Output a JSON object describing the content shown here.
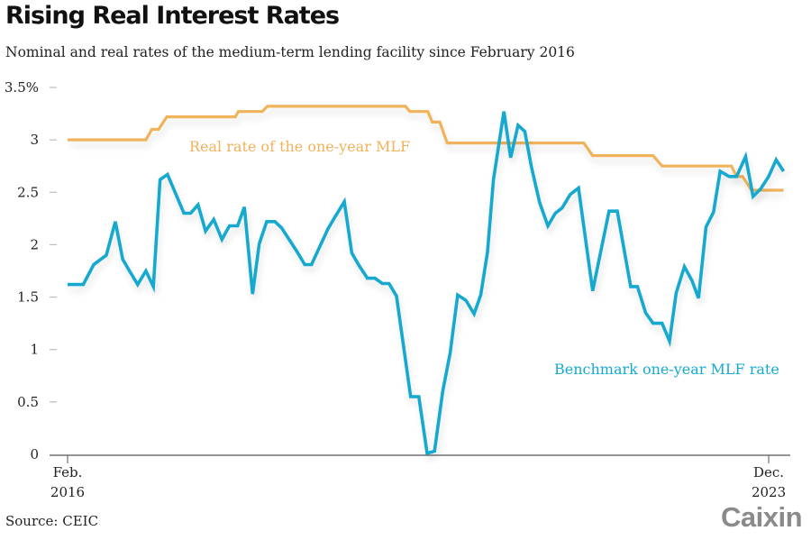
{
  "header": {
    "title": "Rising Real Interest Rates",
    "subtitle": "Nominal and real rates of the medium-term lending facility since February 2016"
  },
  "footer": {
    "source": "Source: CEIC",
    "logo": "Caixin"
  },
  "colors": {
    "real_rate": "#F0B25A",
    "benchmark": "#17A9CF",
    "axis": "#555555",
    "tick": "#bbbbbb"
  },
  "chart_data": {
    "type": "line",
    "title": "Rising Real Interest Rates",
    "subtitle": "Nominal and real rates of the medium-term lending facility since February 2016",
    "xlabel": "",
    "ylabel": "%",
    "x_range": [
      "Feb. 2016",
      "Dec. 2023"
    ],
    "x_ticks": [
      {
        "month_index": 0,
        "line1": "Feb.",
        "line2": "2016"
      },
      {
        "month_index": 94,
        "line1": "Dec.",
        "line2": "2023"
      }
    ],
    "ylim": [
      0,
      3.5
    ],
    "y_ticks": [
      {
        "value": 0,
        "label": "0"
      },
      {
        "value": 0.5,
        "label": "0.5"
      },
      {
        "value": 1,
        "label": "1"
      },
      {
        "value": 1.5,
        "label": "1.5"
      },
      {
        "value": 2,
        "label": "2"
      },
      {
        "value": 2.5,
        "label": "2.5"
      },
      {
        "value": 3,
        "label": "3"
      },
      {
        "value": 3.5,
        "label": "3.5%"
      }
    ],
    "grid": false,
    "legend": "inline labels",
    "series": [
      {
        "name": "Real rate of the one-year MLF",
        "color": "#F0B25A",
        "label_position": "upper-left, below line",
        "points": [
          [
            0,
            3.0
          ],
          [
            10.5,
            3.0
          ],
          [
            11.3,
            3.1
          ],
          [
            12.2,
            3.1
          ],
          [
            13.3,
            3.22
          ],
          [
            22.5,
            3.22
          ],
          [
            22.9,
            3.27
          ],
          [
            26.1,
            3.27
          ],
          [
            26.8,
            3.32
          ],
          [
            45.3,
            3.32
          ],
          [
            45.9,
            3.27
          ],
          [
            48.3,
            3.27
          ],
          [
            48.9,
            3.17
          ],
          [
            49.9,
            3.17
          ],
          [
            50.9,
            2.97
          ],
          [
            69.2,
            2.97
          ],
          [
            70.4,
            2.85
          ],
          [
            78.5,
            2.85
          ],
          [
            79.7,
            2.75
          ],
          [
            89.0,
            2.75
          ],
          [
            89.7,
            2.65
          ],
          [
            90.5,
            2.65
          ],
          [
            91.7,
            2.52
          ],
          [
            96.0,
            2.52
          ]
        ]
      },
      {
        "name": "Benchmark one-year MLF rate",
        "color": "#17A9CF",
        "label_position": "lower-right",
        "points": [
          [
            0,
            1.62
          ],
          [
            2.1,
            1.62
          ],
          [
            3.5,
            1.81
          ],
          [
            5.2,
            1.9
          ],
          [
            6.4,
            2.22
          ],
          [
            7.4,
            1.86
          ],
          [
            8.3,
            1.75
          ],
          [
            9.4,
            1.62
          ],
          [
            10.5,
            1.75
          ],
          [
            11.5,
            1.6
          ],
          [
            12.4,
            2.62
          ],
          [
            13.4,
            2.67
          ],
          [
            15.6,
            2.3
          ],
          [
            16.5,
            2.3
          ],
          [
            17.5,
            2.38
          ],
          [
            18.5,
            2.13
          ],
          [
            19.6,
            2.24
          ],
          [
            20.7,
            2.05
          ],
          [
            21.7,
            2.18
          ],
          [
            22.8,
            2.18
          ],
          [
            23.7,
            2.36
          ],
          [
            24.8,
            1.53
          ],
          [
            25.7,
            2.01
          ],
          [
            26.7,
            2.22
          ],
          [
            27.8,
            2.22
          ],
          [
            28.7,
            2.16
          ],
          [
            30.8,
            1.93
          ],
          [
            31.8,
            1.81
          ],
          [
            32.7,
            1.81
          ],
          [
            34.9,
            2.15
          ],
          [
            35.9,
            2.27
          ],
          [
            37.1,
            2.41
          ],
          [
            38.1,
            1.92
          ],
          [
            39.0,
            1.81
          ],
          [
            40.2,
            1.68
          ],
          [
            41.2,
            1.68
          ],
          [
            42.2,
            1.63
          ],
          [
            43.1,
            1.63
          ],
          [
            44.1,
            1.51
          ],
          [
            46.0,
            0.55
          ],
          [
            47.1,
            0.55
          ],
          [
            48.2,
            0.01
          ],
          [
            49.2,
            0.03
          ],
          [
            50.3,
            0.6
          ],
          [
            51.3,
            0.97
          ],
          [
            52.3,
            1.52
          ],
          [
            53.4,
            1.47
          ],
          [
            54.5,
            1.34
          ],
          [
            55.4,
            1.52
          ],
          [
            56.3,
            1.93
          ],
          [
            57.1,
            2.62
          ],
          [
            58.5,
            3.27
          ],
          [
            59.4,
            2.83
          ],
          [
            60.4,
            3.14
          ],
          [
            61.3,
            3.08
          ],
          [
            62.2,
            2.74
          ],
          [
            63.3,
            2.4
          ],
          [
            64.4,
            2.18
          ],
          [
            65.4,
            2.3
          ],
          [
            66.3,
            2.35
          ],
          [
            67.4,
            2.48
          ],
          [
            68.5,
            2.54
          ],
          [
            70.4,
            1.56
          ],
          [
            72.6,
            2.32
          ],
          [
            73.7,
            2.32
          ],
          [
            75.5,
            1.6
          ],
          [
            76.4,
            1.6
          ],
          [
            77.5,
            1.35
          ],
          [
            78.5,
            1.25
          ],
          [
            79.7,
            1.25
          ],
          [
            80.7,
            1.08
          ],
          [
            81.6,
            1.54
          ],
          [
            82.7,
            1.79
          ],
          [
            83.7,
            1.66
          ],
          [
            84.6,
            1.49
          ],
          [
            85.6,
            2.17
          ],
          [
            86.6,
            2.31
          ],
          [
            87.5,
            2.7
          ],
          [
            88.7,
            2.65
          ],
          [
            89.7,
            2.65
          ],
          [
            90.9,
            2.84
          ],
          [
            91.9,
            2.46
          ],
          [
            92.9,
            2.53
          ],
          [
            94.0,
            2.65
          ],
          [
            95.0,
            2.81
          ],
          [
            96.0,
            2.7
          ]
        ]
      }
    ]
  }
}
